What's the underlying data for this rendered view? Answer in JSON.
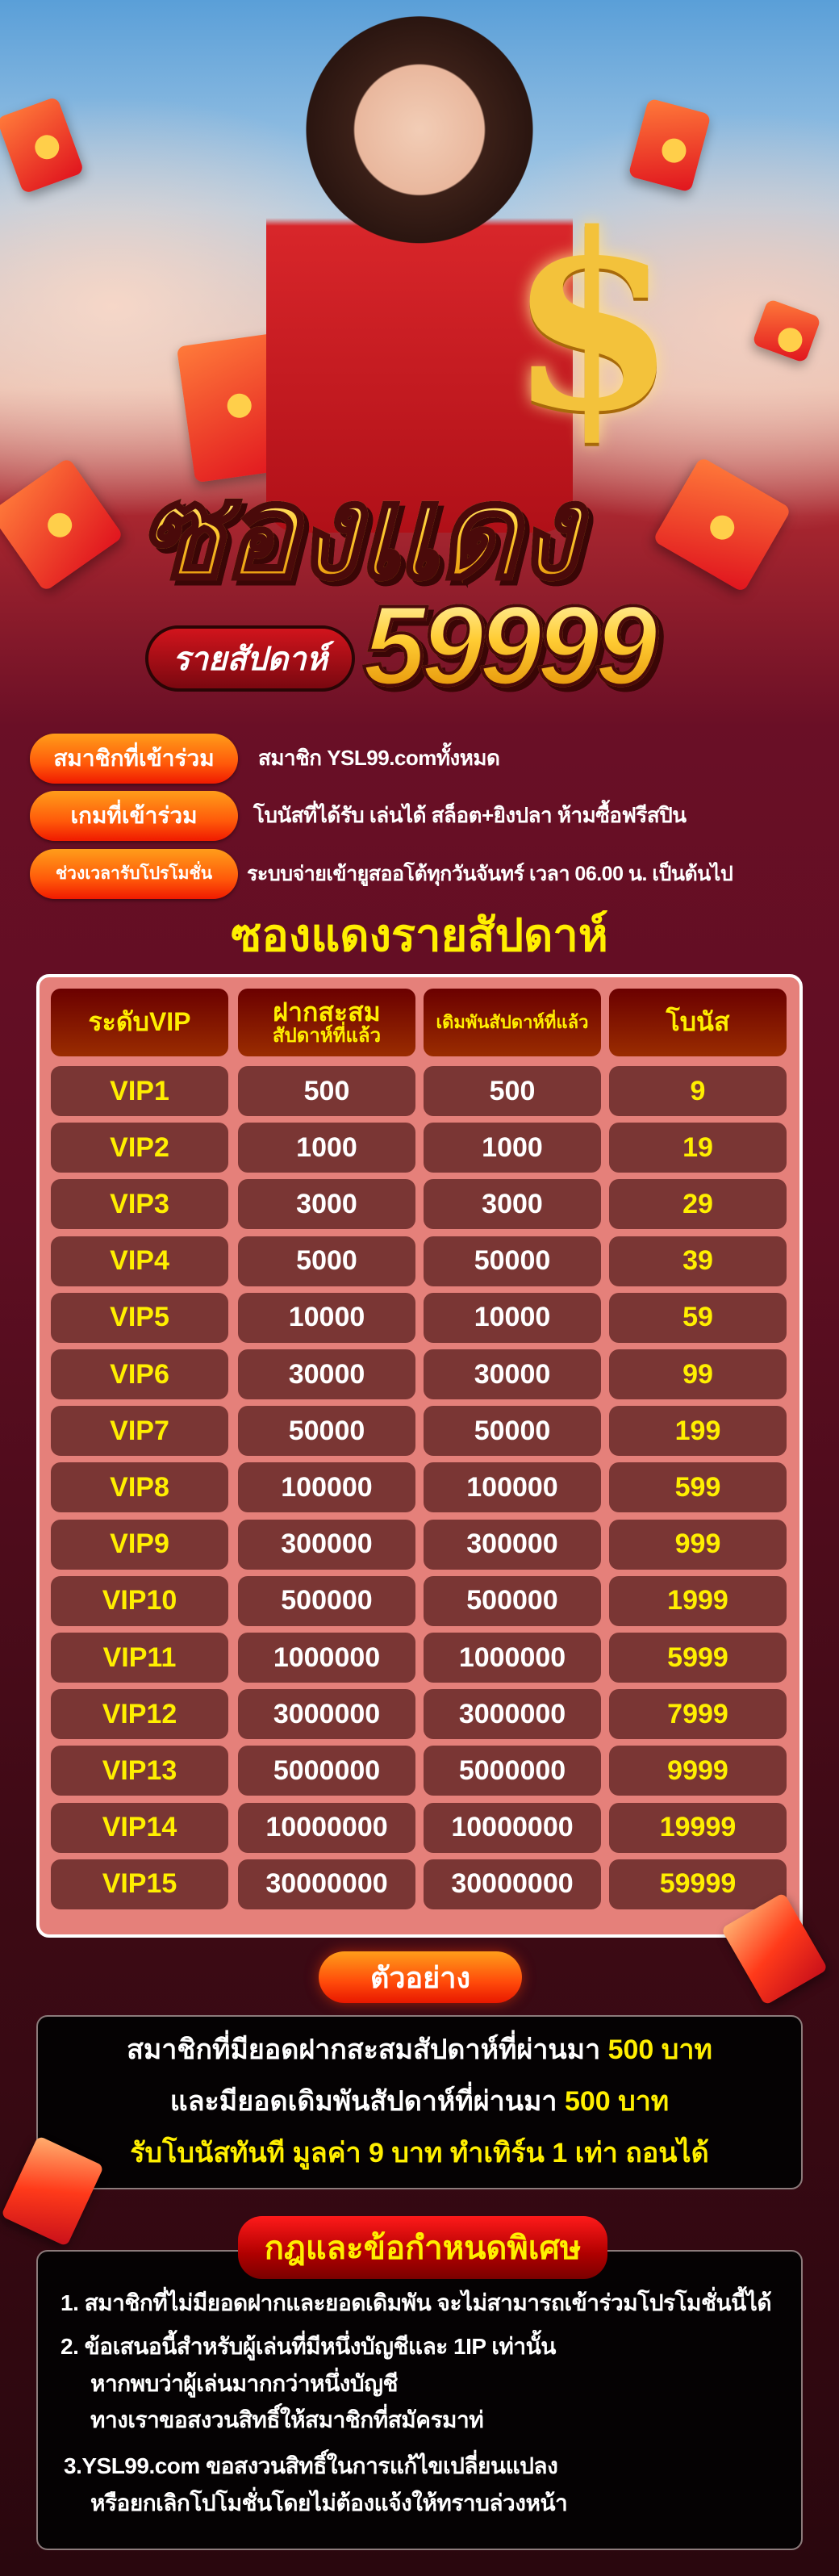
{
  "hero": {
    "title": "ซองแดง",
    "subtitle_pill": "รายสัปดาห์",
    "amount": "59999"
  },
  "info": [
    {
      "label": "สมาชิกที่เข้าร่วม",
      "text": "สมาชิก YSL99.comทั้งหมด"
    },
    {
      "label": "เกมที่เข้าร่วม",
      "text": "โบนัสที่ได้รับ เล่นได้ สล็อต+ยิงปลา ห้ามซื้อฟรีสปิน"
    },
    {
      "label": "ช่วงเวลารับโปรโมชั่น",
      "text": "ระบบจ่ายเข้ายูสออโต้ทุกวันจันทร์  เวลา 06.00 น. เป็นต้นไป"
    }
  ],
  "table": {
    "heading": "ซองแดงรายสัปดาห์",
    "headers": [
      {
        "l1": "ระดับVIP",
        "l2": ""
      },
      {
        "l1": "ฝากสะสม",
        "l2": "สัปดาห์ที่แล้ว"
      },
      {
        "l1": "เดิมพันสัปดาห์ที่แล้ว",
        "l2": ""
      },
      {
        "l1": "โบนัส",
        "l2": ""
      }
    ],
    "rows": [
      [
        "VIP1",
        "500",
        "500",
        "9"
      ],
      [
        "VIP2",
        "1000",
        "1000",
        "19"
      ],
      [
        "VIP3",
        "3000",
        "3000",
        "29"
      ],
      [
        "VIP4",
        "5000",
        "50000",
        "39"
      ],
      [
        "VIP5",
        "10000",
        "10000",
        "59"
      ],
      [
        "VIP6",
        "30000",
        "30000",
        "99"
      ],
      [
        "VIP7",
        "50000",
        "50000",
        "199"
      ],
      [
        "VIP8",
        "100000",
        "100000",
        "599"
      ],
      [
        "VIP9",
        "300000",
        "300000",
        "999"
      ],
      [
        "VIP10",
        "500000",
        "500000",
        "1999"
      ],
      [
        "VIP11",
        "1000000",
        "1000000",
        "5999"
      ],
      [
        "VIP12",
        "3000000",
        "3000000",
        "7999"
      ],
      [
        "VIP13",
        "5000000",
        "5000000",
        "9999"
      ],
      [
        "VIP14",
        "10000000",
        "10000000",
        "19999"
      ],
      [
        "VIP15",
        "30000000",
        "30000000",
        "59999"
      ]
    ]
  },
  "example": {
    "button": "ตัวอย่าง",
    "line1_a": "สมาชิกที่มียอดฝากสะสมสัปดาห์ที่ผ่านมา ",
    "line1_b": "500 บาท",
    "line2_a": "และมียอดเดิมพันสัปดาห์ที่ผ่านมา ",
    "line2_b": "500 บาท",
    "line3": "รับโบนัสทันที มูลค่า 9 บาท ทำเทิร์น 1 เท่า ถอนได้"
  },
  "rules": {
    "title": "กฎและข้อกำหนดพิเศษ",
    "lines": [
      "1. สมาชิกที่ไม่มียอดฝากและยอดเดิมพัน จะไม่สามารถเข้าร่วมโปรโมชั่นนี้ได้",
      "2. ข้อเสนอนี้สำหรับผู้เล่นที่มีหนึ่งบัญชีและ 1IP เท่านั้น",
      "หากพบว่าผู้เล่นมากกว่าหนึ่งบัญชี",
      "ทางเราขอสงวนสิทธิ์ให้สมาชิกที่สมัครมาท่",
      "3.YSL99.com ขอสงวนสิทธิ์ในการแก้ไขเปลี่ยนแปลง",
      "หรือยกเลิกโปโมชั่นโดยไม่ต้องแจ้งให้ทราบล่วงหน้า"
    ]
  },
  "colors": {
    "background": "#6a0f26",
    "accent_yellow": "#ffef00",
    "pill_orange": "#ff5a0a",
    "table_panel": "#e5807a",
    "table_cell": "#7a3634"
  }
}
